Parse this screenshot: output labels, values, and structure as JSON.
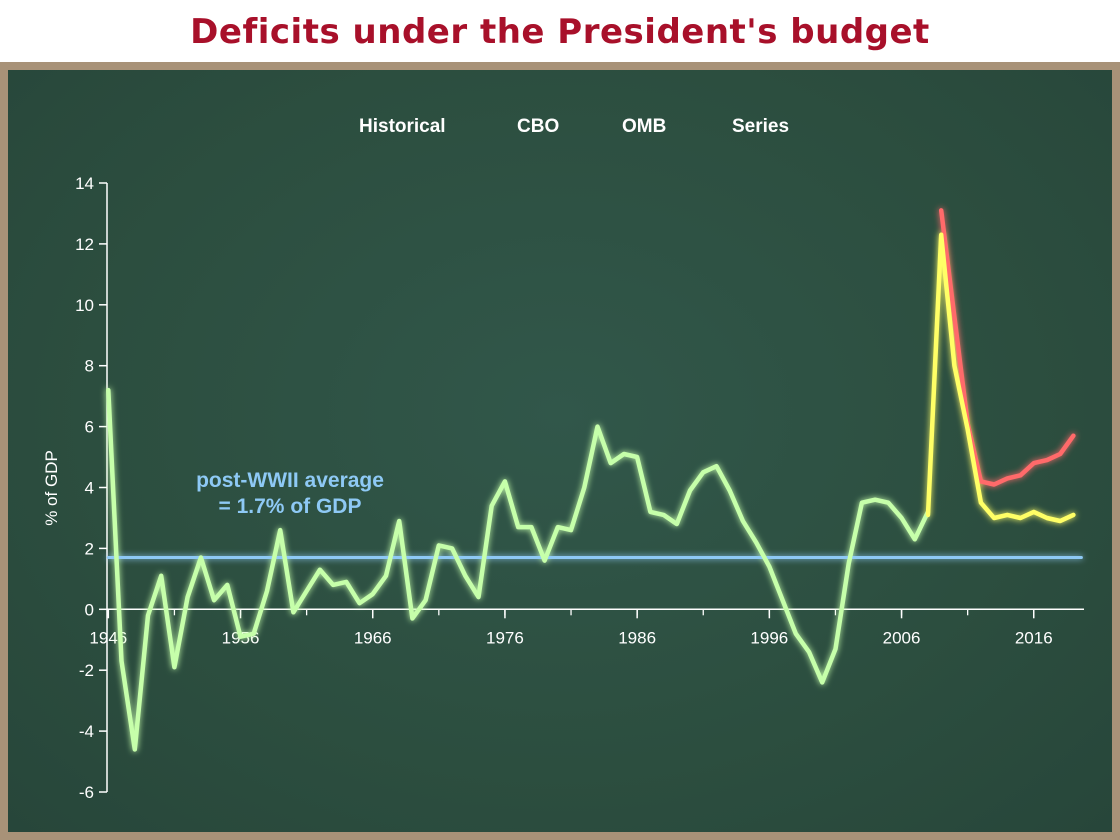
{
  "title": "Deficits under the President's budget",
  "colors": {
    "title": "#a8102a",
    "frame": "#a89278",
    "board": "#2d5040",
    "historical": "#c6ffaa",
    "cbo": "#ff6b6b",
    "omb": "#ffff66",
    "series": "#8ec9f5"
  },
  "chart_data": {
    "type": "line",
    "title": "Deficits under the President's budget",
    "ylabel": "% of GDP",
    "xlabel": "",
    "xlim": [
      1945.9,
      2019.8
    ],
    "ylim": [
      -6,
      14
    ],
    "xticks": [
      1946,
      1956,
      1966,
      1976,
      1986,
      1996,
      2006,
      2016
    ],
    "yticks": [
      -6,
      -4,
      -2,
      0,
      2,
      4,
      6,
      8,
      10,
      12,
      14
    ],
    "legend_position": "top-center",
    "annotation": {
      "line1": "post-WWII average",
      "line2": "= 1.7% of GDP",
      "value": 1.7
    },
    "series": [
      {
        "name": "Historical",
        "color": "#c6ffaa",
        "x": [
          1946,
          1947,
          1948,
          1949,
          1950,
          1951,
          1952,
          1953,
          1954,
          1955,
          1956,
          1957,
          1958,
          1959,
          1960,
          1961,
          1962,
          1963,
          1964,
          1965,
          1966,
          1967,
          1968,
          1969,
          1970,
          1971,
          1972,
          1973,
          1974,
          1975,
          1976,
          1977,
          1978,
          1979,
          1980,
          1981,
          1982,
          1983,
          1984,
          1985,
          1986,
          1987,
          1988,
          1989,
          1990,
          1991,
          1992,
          1993,
          1994,
          1995,
          1996,
          1997,
          1998,
          1999,
          2000,
          2001,
          2002,
          2003,
          2004,
          2005,
          2006,
          2007,
          2008
        ],
        "y": [
          7.2,
          -1.7,
          -4.6,
          -0.2,
          1.1,
          -1.9,
          0.4,
          1.7,
          0.3,
          0.8,
          -0.9,
          -0.8,
          0.6,
          2.6,
          -0.1,
          0.6,
          1.3,
          0.8,
          0.9,
          0.2,
          0.5,
          1.1,
          2.9,
          -0.3,
          0.3,
          2.1,
          2.0,
          1.1,
          0.4,
          3.4,
          4.2,
          2.7,
          2.7,
          1.6,
          2.7,
          2.6,
          4.0,
          6.0,
          4.8,
          5.1,
          5.0,
          3.2,
          3.1,
          2.8,
          3.9,
          4.5,
          4.7,
          3.9,
          2.9,
          2.2,
          1.4,
          0.3,
          -0.8,
          -1.4,
          -2.4,
          -1.3,
          1.5,
          3.5,
          3.6,
          3.5,
          3.0,
          2.3,
          3.2
        ]
      },
      {
        "name": "CBO",
        "color": "#ff6b6b",
        "x": [
          2009,
          2010,
          2011,
          2012,
          2013,
          2014,
          2015,
          2016,
          2017,
          2018,
          2019
        ],
        "y": [
          13.1,
          9.6,
          6.1,
          4.2,
          4.1,
          4.3,
          4.4,
          4.8,
          4.9,
          5.1,
          5.7
        ]
      },
      {
        "name": "OMB",
        "color": "#ffff66",
        "x": [
          2008,
          2009,
          2010,
          2011,
          2012,
          2013,
          2014,
          2015,
          2016,
          2017,
          2018,
          2019
        ],
        "y": [
          3.1,
          12.3,
          8.0,
          5.9,
          3.5,
          3.0,
          3.1,
          3.0,
          3.2,
          3.0,
          2.9,
          3.1
        ]
      },
      {
        "name": "Series",
        "color": "#8ec9f5",
        "x": [
          1946,
          2019.6
        ],
        "y": [
          1.7,
          1.7
        ]
      }
    ]
  }
}
